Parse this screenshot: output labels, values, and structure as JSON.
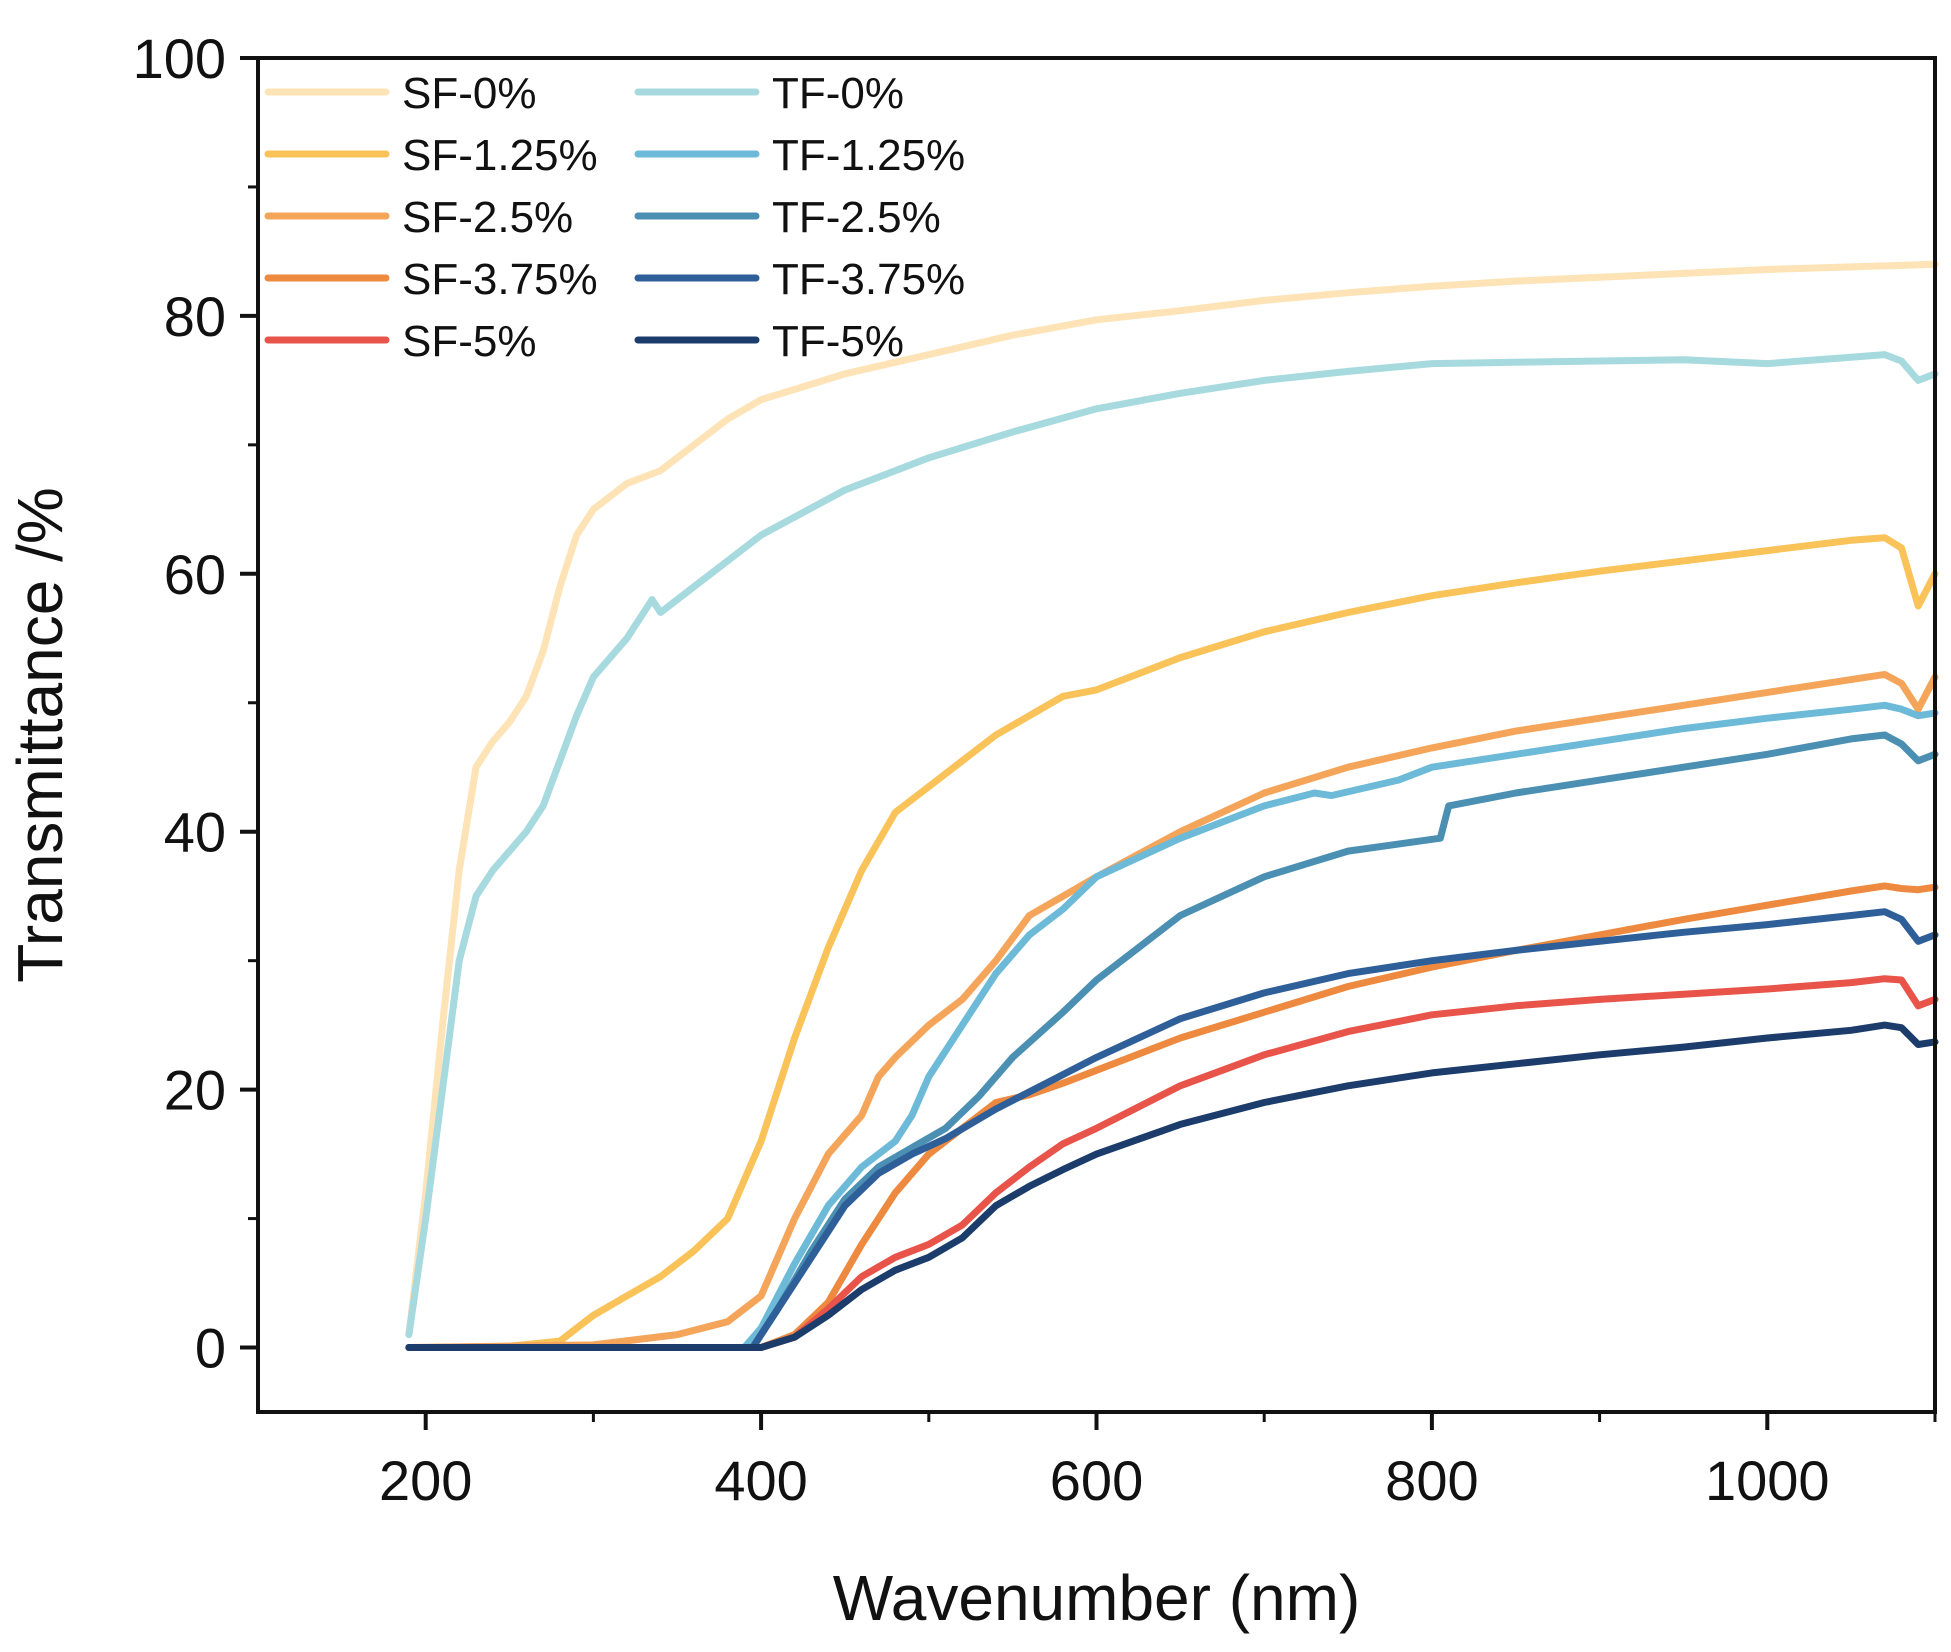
{
  "chart_data": {
    "type": "line",
    "title": "",
    "xlabel": "Wavenumber (nm)",
    "ylabel": "Transmittance /%",
    "xlim": [
      100,
      1100
    ],
    "ylim": [
      -5,
      100
    ],
    "xticks": [
      200,
      400,
      600,
      800,
      1000
    ],
    "xtick_labels": [
      "200",
      "400",
      "600",
      "800",
      "1000"
    ],
    "yticks": [
      0,
      20,
      40,
      60,
      80,
      100
    ],
    "ytick_labels": [
      "0",
      "20",
      "40",
      "60",
      "80",
      "100"
    ],
    "grid": false,
    "legend_position": "top-left",
    "series": [
      {
        "name": "SF-0%",
        "color": "#fde3b6",
        "x": [
          190,
          200,
          210,
          220,
          230,
          240,
          250,
          260,
          270,
          280,
          290,
          300,
          320,
          340,
          360,
          380,
          400,
          450,
          500,
          550,
          600,
          650,
          700,
          750,
          800,
          850,
          900,
          950,
          1000,
          1050,
          1100
        ],
        "y": [
          1,
          12,
          25,
          37,
          45,
          47,
          48.5,
          50.5,
          54,
          59,
          63,
          65,
          67,
          68,
          70,
          72,
          73.5,
          75.5,
          77,
          78.5,
          79.7,
          80.4,
          81.2,
          81.8,
          82.3,
          82.7,
          83,
          83.3,
          83.6,
          83.8,
          84
        ]
      },
      {
        "name": "SF-1.25%",
        "color": "#f9c35a",
        "x": [
          190,
          200,
          250,
          280,
          290,
          300,
          320,
          340,
          360,
          380,
          400,
          420,
          440,
          460,
          480,
          500,
          520,
          540,
          560,
          580,
          600,
          650,
          700,
          750,
          800,
          850,
          900,
          950,
          1000,
          1050,
          1070,
          1080,
          1090,
          1100
        ],
        "y": [
          0,
          0,
          0.1,
          0.5,
          1.5,
          2.5,
          4,
          5.5,
          7.5,
          10,
          16,
          24,
          31,
          37,
          41.5,
          43.5,
          45.5,
          47.5,
          49,
          50.5,
          51,
          53.5,
          55.5,
          57,
          58.3,
          59.3,
          60.2,
          61,
          61.8,
          62.6,
          62.8,
          62,
          57.5,
          60
        ]
      },
      {
        "name": "SF-2.5%",
        "color": "#f5a55a",
        "x": [
          190,
          300,
          350,
          380,
          400,
          420,
          440,
          460,
          470,
          480,
          500,
          520,
          540,
          560,
          580,
          600,
          650,
          700,
          750,
          800,
          850,
          900,
          950,
          1000,
          1050,
          1070,
          1080,
          1090,
          1100
        ],
        "y": [
          0,
          0.2,
          1,
          2,
          4,
          10,
          15,
          18,
          21,
          22.5,
          25,
          27,
          30,
          33.5,
          35,
          36.5,
          40,
          43,
          45,
          46.5,
          47.8,
          48.8,
          49.8,
          50.8,
          51.8,
          52.2,
          51.5,
          49.5,
          52
        ]
      },
      {
        "name": "SF-3.75%",
        "color": "#ee8a3f",
        "x": [
          190,
          400,
          420,
          440,
          460,
          480,
          500,
          520,
          540,
          560,
          580,
          600,
          650,
          700,
          750,
          800,
          850,
          900,
          950,
          1000,
          1050,
          1070,
          1080,
          1090,
          1100
        ],
        "y": [
          0,
          0,
          1,
          3.5,
          8,
          12,
          15,
          17,
          19,
          19.6,
          20.5,
          21.5,
          24,
          26,
          28,
          29.5,
          30.8,
          32,
          33.2,
          34.3,
          35.4,
          35.8,
          35.6,
          35.5,
          35.7
        ]
      },
      {
        "name": "SF-5%",
        "color": "#e8544a",
        "x": [
          190,
          400,
          420,
          440,
          460,
          480,
          500,
          520,
          540,
          560,
          580,
          600,
          650,
          700,
          750,
          800,
          850,
          900,
          950,
          1000,
          1050,
          1070,
          1080,
          1090,
          1100
        ],
        "y": [
          0,
          0,
          0.8,
          3,
          5.5,
          7,
          8,
          9.5,
          12,
          14,
          15.8,
          17,
          20.3,
          22.7,
          24.5,
          25.8,
          26.5,
          27,
          27.4,
          27.8,
          28.3,
          28.6,
          28.5,
          26.5,
          27
        ]
      },
      {
        "name": "TF-0%",
        "color": "#a7dade",
        "x": [
          190,
          200,
          210,
          220,
          230,
          240,
          250,
          260,
          270,
          280,
          290,
          300,
          320,
          335,
          340,
          360,
          380,
          400,
          450,
          500,
          550,
          600,
          650,
          700,
          750,
          800,
          850,
          900,
          950,
          1000,
          1050,
          1070,
          1080,
          1090,
          1100
        ],
        "y": [
          1,
          10,
          20,
          30,
          35,
          37,
          38.5,
          40,
          42,
          45.5,
          49,
          52,
          55,
          58,
          57,
          59,
          61,
          63,
          66.5,
          69,
          71,
          72.8,
          74,
          75,
          75.7,
          76.3,
          76.4,
          76.5,
          76.6,
          76.3,
          76.8,
          77,
          76.5,
          75,
          75.5
        ]
      },
      {
        "name": "TF-1.25%",
        "color": "#6cbad7",
        "x": [
          190,
          390,
          400,
          410,
          420,
          440,
          460,
          480,
          490,
          500,
          520,
          540,
          560,
          580,
          600,
          650,
          700,
          730,
          740,
          780,
          800,
          850,
          900,
          950,
          1000,
          1050,
          1070,
          1080,
          1090,
          1100
        ],
        "y": [
          0,
          0,
          1.5,
          4,
          6.5,
          11,
          14,
          16,
          18,
          21,
          25,
          29,
          32,
          34,
          36.5,
          39.5,
          42,
          43,
          42.8,
          44,
          45,
          46,
          47,
          48,
          48.8,
          49.5,
          49.8,
          49.5,
          49,
          49.2
        ]
      },
      {
        "name": "TF-2.5%",
        "color": "#4b8fb3",
        "x": [
          190,
          395,
          410,
          430,
          450,
          470,
          490,
          510,
          530,
          550,
          580,
          600,
          650,
          700,
          750,
          805,
          810,
          850,
          900,
          950,
          1000,
          1050,
          1070,
          1080,
          1090,
          1100
        ],
        "y": [
          0,
          0,
          3,
          7.5,
          11.5,
          14,
          15.5,
          17,
          19.5,
          22.5,
          26,
          28.5,
          33.5,
          36.5,
          38.5,
          39.5,
          42,
          43,
          44,
          45,
          46,
          47.2,
          47.5,
          46.8,
          45.5,
          46
        ]
      },
      {
        "name": "TF-3.75%",
        "color": "#2f5f99",
        "x": [
          190,
          395,
          410,
          430,
          450,
          470,
          490,
          510,
          540,
          570,
          600,
          650,
          700,
          750,
          800,
          850,
          900,
          950,
          1000,
          1050,
          1070,
          1080,
          1090,
          1100
        ],
        "y": [
          0,
          0,
          3,
          7,
          11,
          13.5,
          15,
          16.2,
          18.5,
          20.5,
          22.5,
          25.5,
          27.5,
          29,
          30,
          30.8,
          31.5,
          32.2,
          32.8,
          33.5,
          33.8,
          33.2,
          31.5,
          32
        ]
      },
      {
        "name": "TF-5%",
        "color": "#1c3d6b",
        "x": [
          190,
          400,
          420,
          440,
          460,
          480,
          500,
          520,
          540,
          560,
          580,
          600,
          650,
          700,
          750,
          800,
          850,
          900,
          950,
          1000,
          1050,
          1070,
          1080,
          1090,
          1100
        ],
        "y": [
          0,
          0,
          0.8,
          2.5,
          4.5,
          6,
          7,
          8.5,
          11,
          12.5,
          13.8,
          15,
          17.3,
          19,
          20.3,
          21.3,
          22,
          22.7,
          23.3,
          24,
          24.6,
          25,
          24.8,
          23.5,
          23.7
        ]
      }
    ]
  }
}
